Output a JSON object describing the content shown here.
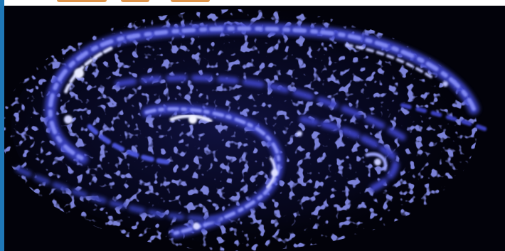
{
  "image": {
    "subject": "galaxy-emission-map",
    "colors": {
      "background": "#02020a",
      "emission_dim": "#2b2f9e",
      "emission_mid": "#5a63e0",
      "emission_bright": "#c9ccff",
      "left_bar": "#1f78b8",
      "top_strip": "#ffffff",
      "top_accent": "#d9822b"
    }
  }
}
